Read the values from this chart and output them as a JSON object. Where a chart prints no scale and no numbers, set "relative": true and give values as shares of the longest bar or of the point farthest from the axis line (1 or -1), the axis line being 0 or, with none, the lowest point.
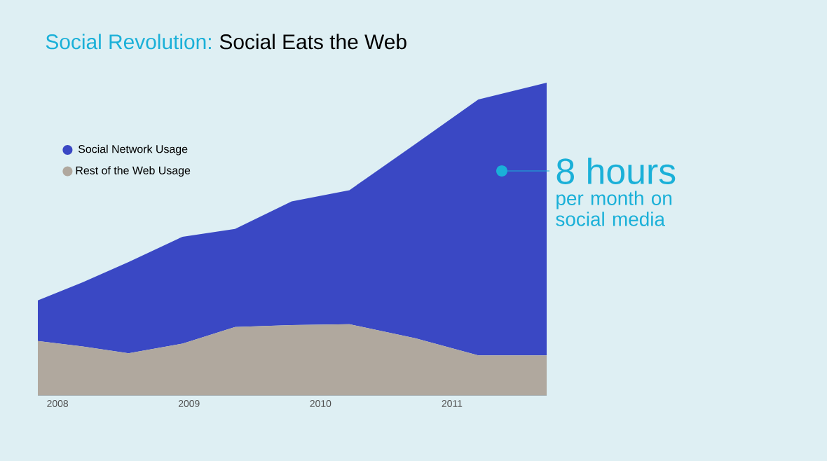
{
  "chart_data": {
    "type": "area",
    "title": "Social Revolution:",
    "subtitle": "Social Eats the Web",
    "relative": true,
    "stacked": true,
    "legend": "top left",
    "x": [
      2007.85,
      2008.19,
      2008.54,
      2008.95,
      2009.35,
      2009.78,
      2010.22,
      2010.72,
      2011.2,
      2011.72
    ],
    "xlim": [
      2007.85,
      2011.72
    ],
    "xticks": [
      2008,
      2009,
      2010,
      2011
    ],
    "series": [
      {
        "name": "Rest of the Web Usage",
        "color": "#b0a89e",
        "values": [
          0.173,
          0.156,
          0.134,
          0.165,
          0.218,
          0.224,
          0.227,
          0.182,
          0.127,
          0.127
        ]
      },
      {
        "name": "Social Network Usage",
        "color": "#3a48c4",
        "values": [
          0.13,
          0.205,
          0.292,
          0.342,
          0.314,
          0.396,
          0.429,
          0.621,
          0.819,
          0.873
        ]
      }
    ],
    "annotations": [
      "8 hours",
      "per month on social media"
    ]
  }
}
